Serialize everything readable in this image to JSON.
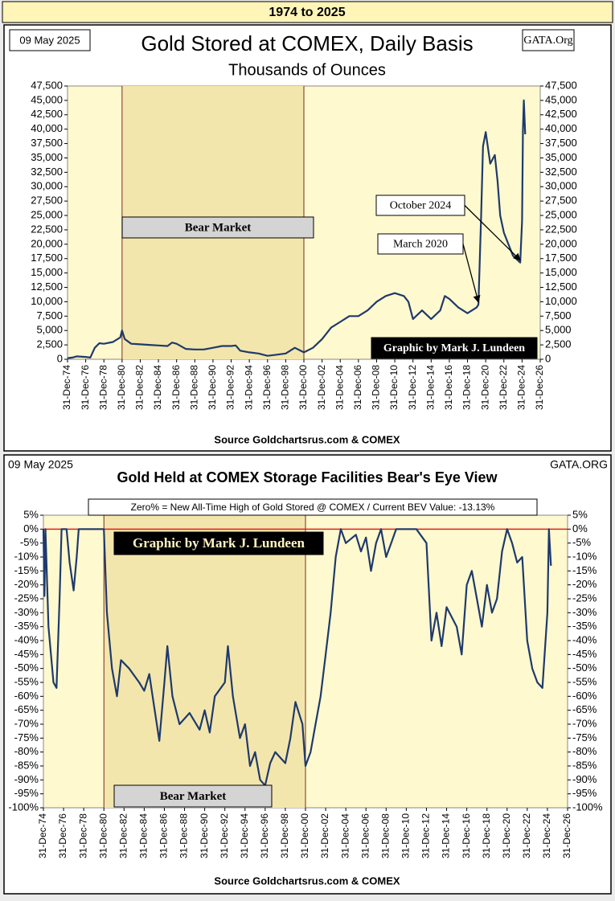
{
  "title_bar": "1974 to 2025",
  "chart_data": [
    {
      "type": "line",
      "title": "Gold Stored at COMEX, Daily Basis",
      "subtitle": "Thousands of Ounces",
      "date": "09 May 2025",
      "site": "GATA.Org",
      "credit": "Graphic by Mark J. Lundeen",
      "bear_label": "Bear Market",
      "source": "Source Goldchartsrus.com & COMEX",
      "color": "#1f3a6b",
      "shaded_range": [
        1981,
        2001
      ],
      "annotations": [
        {
          "text": "October 2024",
          "x": 2024.8,
          "y": 16800
        },
        {
          "text": "March 2020",
          "x": 2020.2,
          "y": 9500
        }
      ],
      "x": [
        1975,
        1975.5,
        1976,
        1977,
        1977.5,
        1978,
        1978.5,
        1979,
        1980,
        1980.8,
        1981,
        1981.3,
        1982,
        1983,
        1984,
        1985,
        1986,
        1986.5,
        1987,
        1988,
        1989,
        1990,
        1991,
        1992,
        1993,
        1993.5,
        1994,
        1995,
        1996,
        1997,
        1998,
        1999,
        2000,
        2000.5,
        2001,
        2002,
        2003,
        2004,
        2005,
        2006,
        2007,
        2008,
        2009,
        2010,
        2011,
        2012,
        2012.5,
        2013,
        2014,
        2015,
        2016,
        2016.5,
        2017,
        2018,
        2019,
        2020,
        2020.2,
        2020.5,
        2020.7,
        2021,
        2021.5,
        2022,
        2022.3,
        2022.6,
        2023,
        2023.5,
        2024,
        2024.8,
        2025,
        2025.1,
        2025.2,
        2025.35
      ],
      "values": [
        200,
        300,
        500,
        400,
        300,
        2000,
        2800,
        2700,
        3000,
        3800,
        5000,
        3500,
        2700,
        2600,
        2500,
        2400,
        2300,
        2900,
        2700,
        1800,
        1700,
        1700,
        2000,
        2300,
        2300,
        2400,
        1500,
        1200,
        1000,
        600,
        800,
        1000,
        2000,
        1600,
        1200,
        2000,
        3500,
        5500,
        6500,
        7500,
        7500,
        8500,
        10000,
        11000,
        11500,
        11000,
        10000,
        7000,
        8500,
        7000,
        8500,
        11000,
        10500,
        9000,
        8000,
        9000,
        9500,
        25000,
        37000,
        39500,
        34000,
        35500,
        31000,
        25000,
        22000,
        20000,
        18000,
        16800,
        24000,
        40000,
        45000,
        39100
      ],
      "xlim": [
        1975,
        2027
      ],
      "xticks": [
        {
          "value": 1975,
          "label": "31-Dec-74"
        },
        {
          "value": 1977,
          "label": "31-Dec-76"
        },
        {
          "value": 1979,
          "label": "31-Dec-78"
        },
        {
          "value": 1981,
          "label": "31-Dec-80"
        },
        {
          "value": 1983,
          "label": "31-Dec-82"
        },
        {
          "value": 1985,
          "label": "31-Dec-84"
        },
        {
          "value": 1987,
          "label": "31-Dec-86"
        },
        {
          "value": 1989,
          "label": "31-Dec-88"
        },
        {
          "value": 1991,
          "label": "31-Dec-90"
        },
        {
          "value": 1993,
          "label": "31-Dec-92"
        },
        {
          "value": 1995,
          "label": "31-Dec-94"
        },
        {
          "value": 1997,
          "label": "31-Dec-96"
        },
        {
          "value": 1999,
          "label": "31-Dec-98"
        },
        {
          "value": 2001,
          "label": "31-Dec-00"
        },
        {
          "value": 2003,
          "label": "31-Dec-02"
        },
        {
          "value": 2005,
          "label": "31-Dec-04"
        },
        {
          "value": 2007,
          "label": "31-Dec-06"
        },
        {
          "value": 2009,
          "label": "31-Dec-08"
        },
        {
          "value": 2011,
          "label": "31-Dec-10"
        },
        {
          "value": 2013,
          "label": "31-Dec-12"
        },
        {
          "value": 2015,
          "label": "31-Dec-14"
        },
        {
          "value": 2017,
          "label": "31-Dec-16"
        },
        {
          "value": 2019,
          "label": "31-Dec-18"
        },
        {
          "value": 2021,
          "label": "31-Dec-20"
        },
        {
          "value": 2023,
          "label": "31-Dec-22"
        },
        {
          "value": 2025,
          "label": "31-Dec-24"
        },
        {
          "value": 2027,
          "label": "31-Dec-26"
        }
      ],
      "ylim": [
        0,
        47500
      ],
      "yticks": [
        0,
        {
          "value": 2500,
          "label": "2,500"
        },
        {
          "value": 5000,
          "label": "5,000"
        },
        {
          "value": 7500,
          "label": "7,500"
        },
        {
          "value": 10000,
          "label": "10,000"
        },
        {
          "value": 12500,
          "label": "12,500"
        },
        {
          "value": 15000,
          "label": "15,000"
        },
        {
          "value": 17500,
          "label": "17,500"
        },
        {
          "value": 20000,
          "label": "20,000"
        },
        {
          "value": 22500,
          "label": "22,500"
        },
        {
          "value": 25000,
          "label": "25,000"
        },
        {
          "value": 27500,
          "label": "27,500"
        },
        {
          "value": 30000,
          "label": "30,000"
        },
        {
          "value": 32500,
          "label": "32,500"
        },
        {
          "value": 35000,
          "label": "35,000"
        },
        {
          "value": 37500,
          "label": "37,500"
        },
        {
          "value": 40000,
          "label": "40,000"
        },
        {
          "value": 42500,
          "label": "42,500"
        },
        {
          "value": 45000,
          "label": "45,000"
        },
        {
          "value": 47500,
          "label": "47,500"
        }
      ]
    },
    {
      "type": "line",
      "title": "Gold Held at COMEX Storage Facilities  Bear's Eye View",
      "date": "09 May 2025",
      "site": "GATA.ORG",
      "credit": "Graphic by Mark J. Lundeen",
      "bear_label": "Bear Market",
      "note": "Zero% = New All-Time High of Gold Stored @ COMEX  / Current BEV Value: -13.13%",
      "source": "Source Goldchartsrus.com & COMEX",
      "color": "#1f3a6b",
      "shaded_range": [
        1981,
        2001
      ],
      "reference_line": {
        "value": 0,
        "color": "#e02020"
      },
      "x": [
        1975,
        1975.1,
        1975.2,
        1975.5,
        1976,
        1976.3,
        1976.6,
        1976.8,
        1977.3,
        1977.6,
        1978,
        1978.3,
        1978.5,
        1981,
        1981.3,
        1981.8,
        1982.3,
        1982.7,
        1983.5,
        1984.5,
        1985,
        1985.5,
        1986,
        1986.5,
        1987,
        1987.3,
        1987.8,
        1988.5,
        1989.5,
        1990.5,
        1991,
        1991.5,
        1992,
        1993,
        1993.3,
        1993.8,
        1994.5,
        1995,
        1995.5,
        1996,
        1996.5,
        1997,
        1997.5,
        1998,
        1999,
        1999.5,
        2000,
        2000.7,
        2001,
        2001.5,
        2002,
        2002.5,
        2003,
        2003.5,
        2004,
        2004.5,
        2005,
        2006,
        2006.5,
        2007,
        2007.5,
        2008,
        2008.5,
        2009,
        2009.5,
        2010,
        2011,
        2012,
        2013,
        2013.5,
        2014,
        2014.5,
        2015,
        2016,
        2016.5,
        2017,
        2017.5,
        2018,
        2018.5,
        2019,
        2019.5,
        2020,
        2020.5,
        2021,
        2021.5,
        2022,
        2022.5,
        2023,
        2023.5,
        2024,
        2024.5,
        2025,
        2025.15,
        2025.35
      ],
      "values": [
        0,
        -24,
        0,
        -35,
        -55,
        -57,
        -25,
        0,
        0,
        -12,
        -22,
        -10,
        0,
        0,
        -30,
        -50,
        -60,
        -47,
        -50,
        -55,
        -58,
        -52,
        -64,
        -76,
        -55,
        -42,
        -60,
        -70,
        -66,
        -72,
        -65,
        -73,
        -60,
        -55,
        -42,
        -60,
        -75,
        -70,
        -85,
        -80,
        -90,
        -92,
        -84,
        -80,
        -84,
        -75,
        -62,
        -70,
        -85,
        -80,
        -70,
        -60,
        -45,
        -30,
        -10,
        0,
        -5,
        -2,
        -8,
        -3,
        -15,
        -5,
        0,
        -10,
        -5,
        0,
        0,
        0,
        -5,
        -40,
        -30,
        -42,
        -28,
        -35,
        -45,
        -20,
        -15,
        -25,
        -35,
        -20,
        -30,
        -25,
        -8,
        0,
        -5,
        -12,
        -10,
        -40,
        -50,
        -55,
        -57,
        -30,
        0,
        -13.13
      ],
      "xlim": [
        1975,
        2027
      ],
      "xticks": [
        {
          "value": 1975,
          "label": "31-Dec-74"
        },
        {
          "value": 1977,
          "label": "31-Dec-76"
        },
        {
          "value": 1979,
          "label": "31-Dec-78"
        },
        {
          "value": 1981,
          "label": "31-Dec-80"
        },
        {
          "value": 1983,
          "label": "31-Dec-82"
        },
        {
          "value": 1985,
          "label": "31-Dec-84"
        },
        {
          "value": 1987,
          "label": "31-Dec-86"
        },
        {
          "value": 1989,
          "label": "31-Dec-88"
        },
        {
          "value": 1991,
          "label": "31-Dec-90"
        },
        {
          "value": 1993,
          "label": "31-Dec-92"
        },
        {
          "value": 1995,
          "label": "31-Dec-94"
        },
        {
          "value": 1997,
          "label": "31-Dec-96"
        },
        {
          "value": 1999,
          "label": "31-Dec-98"
        },
        {
          "value": 2001,
          "label": "31-Dec-00"
        },
        {
          "value": 2003,
          "label": "31-Dec-02"
        },
        {
          "value": 2005,
          "label": "31-Dec-04"
        },
        {
          "value": 2007,
          "label": "31-Dec-06"
        },
        {
          "value": 2009,
          "label": "31-Dec-08"
        },
        {
          "value": 2011,
          "label": "31-Dec-10"
        },
        {
          "value": 2013,
          "label": "31-Dec-12"
        },
        {
          "value": 2015,
          "label": "31-Dec-14"
        },
        {
          "value": 2017,
          "label": "31-Dec-16"
        },
        {
          "value": 2019,
          "label": "31-Dec-18"
        },
        {
          "value": 2021,
          "label": "31-Dec-20"
        },
        {
          "value": 2023,
          "label": "31-Dec-22"
        },
        {
          "value": 2025,
          "label": "31-Dec-24"
        },
        {
          "value": 2027,
          "label": "31-Dec-26"
        }
      ],
      "ylim": [
        -100,
        5
      ],
      "yticks": [
        {
          "value": 5,
          "label": "5%"
        },
        {
          "value": 0,
          "label": "0%"
        },
        {
          "value": -5,
          "label": "-5%"
        },
        {
          "value": -10,
          "label": "-10%"
        },
        {
          "value": -15,
          "label": "-15%"
        },
        {
          "value": -20,
          "label": "-20%"
        },
        {
          "value": -25,
          "label": "-25%"
        },
        {
          "value": -30,
          "label": "-30%"
        },
        {
          "value": -35,
          "label": "-35%"
        },
        {
          "value": -40,
          "label": "-40%"
        },
        {
          "value": -45,
          "label": "-45%"
        },
        {
          "value": -50,
          "label": "-50%"
        },
        {
          "value": -55,
          "label": "-55%"
        },
        {
          "value": -60,
          "label": "-60%"
        },
        {
          "value": -65,
          "label": "-65%"
        },
        {
          "value": -70,
          "label": "-70%"
        },
        {
          "value": -75,
          "label": "-75%"
        },
        {
          "value": -80,
          "label": "-80%"
        },
        {
          "value": -85,
          "label": "-85%"
        },
        {
          "value": -90,
          "label": "-90%"
        },
        {
          "value": -95,
          "label": "-95%"
        },
        {
          "value": -100,
          "label": "-100%"
        }
      ]
    }
  ]
}
